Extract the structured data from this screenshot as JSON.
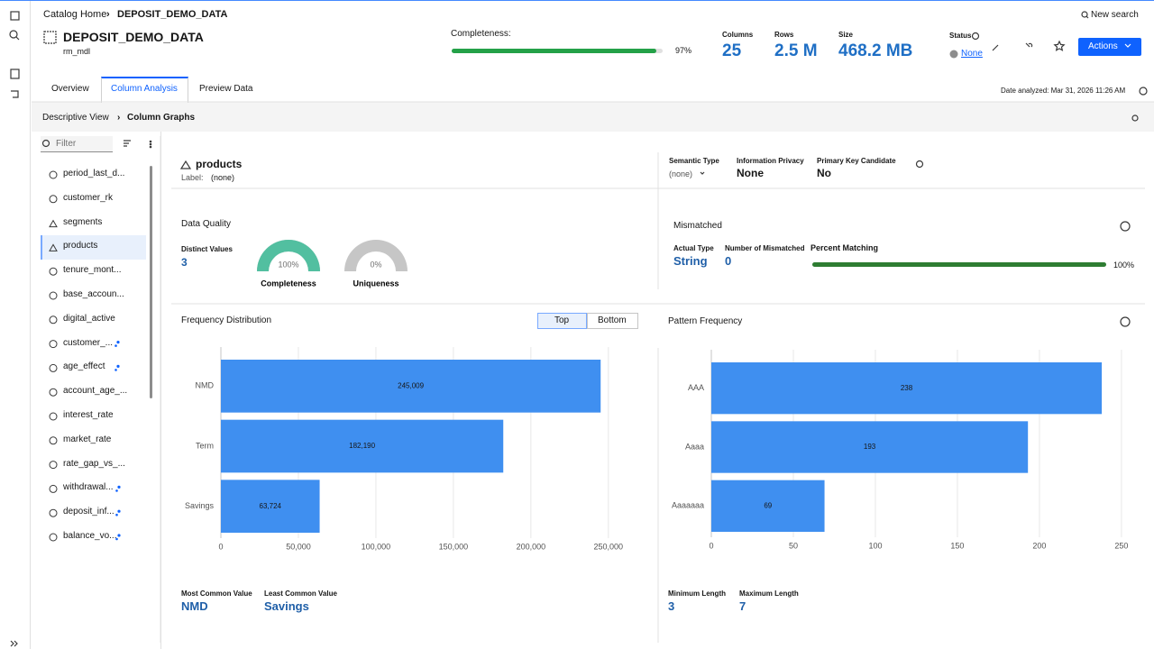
{
  "breadcrumb": {
    "home": "Catalog Home",
    "current": "DEPOSIT_DEMO_DATA"
  },
  "search": "New search",
  "asset": {
    "title": "DEPOSIT_DEMO_DATA",
    "schema": "rm_mdl"
  },
  "completeness": {
    "label": "Completeness:",
    "value": 97,
    "value_label": "97%"
  },
  "stats": [
    {
      "label": "Columns",
      "value": "25"
    },
    {
      "label": "Rows",
      "value": "2.5 M"
    },
    {
      "label": "Size",
      "value": "468.2 MB"
    }
  ],
  "status": {
    "label": "Status",
    "value": "None"
  },
  "actions": "Actions",
  "tabs": [
    "Overview",
    "Column Analysis",
    "Preview Data"
  ],
  "date_analyzed": "Date analyzed: Mar 31, 2026 11:26 AM",
  "subnav": [
    "Descriptive View",
    "Column Graphs"
  ],
  "filter": "Filter",
  "columns": [
    "period_last_d...",
    "customer_rk",
    "segments",
    "products",
    "tenure_mont...",
    "base_accoun...",
    "digital_active",
    "customer_...",
    "age_effect",
    "account_age_...",
    "interest_rate",
    "market_rate",
    "rate_gap_vs_...",
    "withdrawal...",
    "deposit_inf...",
    "balance_vo..."
  ],
  "column": {
    "name": "products",
    "label": "Label:",
    "label_value": "(none)"
  },
  "properties": [
    {
      "label": "Semantic Type",
      "value": "(none)"
    },
    {
      "label": "Information Privacy",
      "value": "None"
    },
    {
      "label": "Primary Key Candidate",
      "value": "No"
    }
  ],
  "data_quality": {
    "title": "Data Quality",
    "distinct_label": "Distinct Values",
    "distinct_value": "3",
    "gauges": [
      {
        "name": "Completeness",
        "value": 100,
        "value_label": "100%"
      },
      {
        "name": "Uniqueness",
        "value": 0,
        "value_label": "0%"
      }
    ]
  },
  "mismatched": {
    "title": "Mismatched",
    "actual_type_label": "Actual Type",
    "actual_type": "String",
    "count_label": "Number of Mismatched",
    "count": "0",
    "matching_label": "Percent Matching",
    "matching": 100,
    "matching_value_label": "100%"
  },
  "frequency": {
    "type": "bar",
    "orientation": "horizontal",
    "title": "Frequency Distribution",
    "toggle": [
      "Top",
      "Bottom"
    ],
    "categories": [
      "NMD",
      "Term",
      "Savings"
    ],
    "values": [
      245009,
      182190,
      63724
    ],
    "value_labels": [
      "245,009",
      "182,190",
      "63,724"
    ],
    "color": "#3f8ff0",
    "xlim": [
      0,
      260000
    ],
    "xticks": [
      0,
      {
        "value": 50000,
        "label": "50,000"
      },
      {
        "value": 100000,
        "label": "100,000"
      },
      {
        "value": 150000,
        "label": "150,000"
      },
      {
        "value": 200000,
        "label": "200,000"
      },
      {
        "value": 250000,
        "label": "250,000"
      }
    ],
    "grid": true
  },
  "pattern": {
    "type": "bar",
    "orientation": "horizontal",
    "title": "Pattern Frequency",
    "categories": [
      "AAA",
      "Aaaa",
      "Aaaaaaa"
    ],
    "values": [
      238,
      193,
      69
    ],
    "color": "#3f8ff0",
    "xlim": [
      0,
      255
    ],
    "xticks": [
      0,
      50,
      100,
      150,
      200,
      250
    ],
    "grid": true
  },
  "summary": [
    {
      "label": "Most Common Value",
      "value": "NMD"
    },
    {
      "label": "Least Common Value",
      "value": "Savings"
    },
    {
      "label": "Minimum Length",
      "value": "3"
    },
    {
      "label": "Maximum Length",
      "value": "7"
    }
  ]
}
